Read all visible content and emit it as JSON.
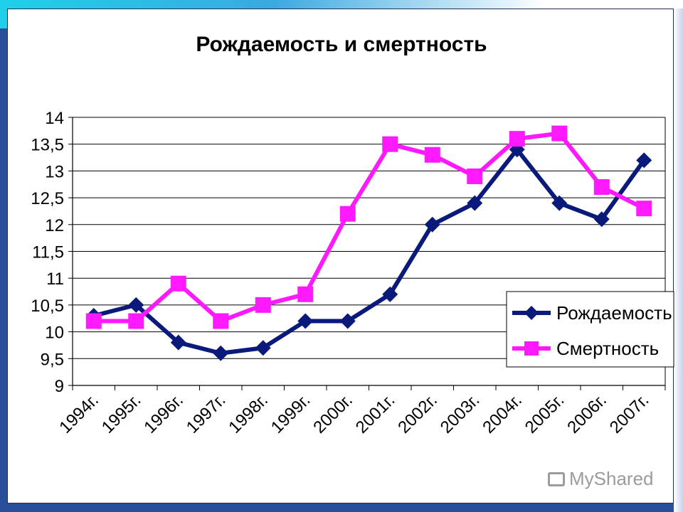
{
  "watermark": {
    "text": "MyShared"
  },
  "colors": {
    "birth": "#0a1a7a",
    "death": "#ff19ff",
    "grid": "#000000"
  },
  "chart_data": {
    "type": "line",
    "title": "Рождаемость и смертность",
    "categories": [
      "1994г.",
      "1995г.",
      "1996г.",
      "1997г.",
      "1998г.",
      "1999г.",
      "2000г.",
      "2001г.",
      "2002г.",
      "2003г.",
      "2004г.",
      "2005г.",
      "2006г.",
      "2007г."
    ],
    "series": [
      {
        "name": "Рождаемость",
        "marker": "diamond",
        "values": [
          10.3,
          10.5,
          9.8,
          9.6,
          9.7,
          10.2,
          10.2,
          10.7,
          12.0,
          12.4,
          13.4,
          12.4,
          12.1,
          13.2
        ]
      },
      {
        "name": "Смертность",
        "marker": "square",
        "values": [
          10.2,
          10.2,
          10.9,
          10.2,
          10.5,
          10.7,
          12.2,
          13.5,
          13.3,
          12.9,
          13.6,
          13.7,
          12.7,
          12.3
        ]
      }
    ],
    "ylim": [
      9,
      14
    ],
    "yticks": [
      "9",
      "9,5",
      "10",
      "10,5",
      "11",
      "11,5",
      "12",
      "12,5",
      "13",
      "13,5",
      "14"
    ],
    "grid": true,
    "legend": "right"
  }
}
